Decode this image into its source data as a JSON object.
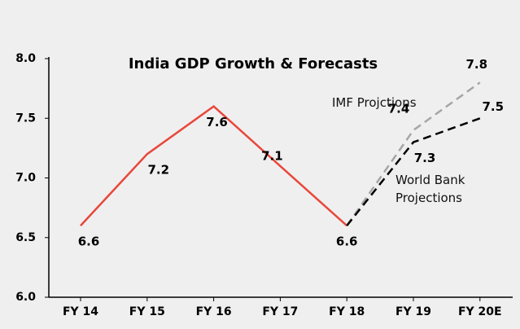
{
  "chart_data": {
    "type": "line",
    "title": "India GDP Growth & Forecasts",
    "categories": [
      "FY 14",
      "FY 15",
      "FY 16",
      "FY 17",
      "FY 18",
      "FY 19",
      "FY 20E"
    ],
    "series": [
      {
        "name": null,
        "color": "#e8473b",
        "dashed": false,
        "values": [
          6.6,
          7.2,
          7.6,
          7.1,
          6.6,
          null,
          null
        ]
      },
      {
        "name": "IMF Projctions",
        "color": "#a6a6a6",
        "dashed": true,
        "values": [
          null,
          null,
          null,
          null,
          6.6,
          7.4,
          7.8
        ]
      },
      {
        "name": "World Bank Projections",
        "color": "#000000",
        "dashed": true,
        "values": [
          null,
          null,
          null,
          null,
          6.6,
          7.3,
          7.5
        ]
      }
    ],
    "ylim": [
      6,
      8
    ],
    "yticks": [
      {
        "value": 6,
        "label": "6.0"
      },
      {
        "value": 6.5,
        "label": "6.5"
      },
      {
        "value": 7,
        "label": "7.0"
      },
      {
        "value": 7.5,
        "label": "7.5"
      },
      {
        "value": 8,
        "label": "8.0"
      }
    ]
  }
}
